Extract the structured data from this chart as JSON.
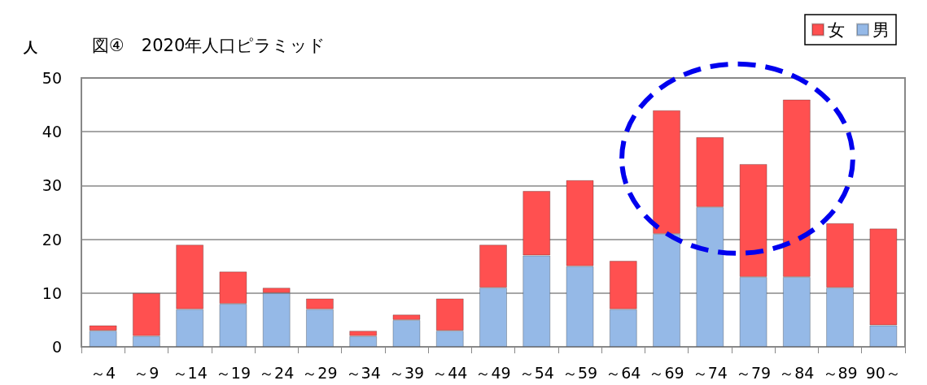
{
  "chart_data": {
    "type": "bar",
    "title": "図④　2020年人口ピラミッド",
    "ylabel": "人",
    "categories": [
      "～4",
      "～9",
      "～14",
      "～19",
      "～24",
      "～29",
      "～34",
      "～39",
      "～44",
      "～49",
      "～54",
      "～59",
      "～64",
      "～69",
      "～74",
      "～79",
      "～84",
      "～89",
      "90～"
    ],
    "series": [
      {
        "name": "男",
        "color": "#95b9e7",
        "values": [
          3,
          2,
          7,
          8,
          10,
          7,
          2,
          5,
          3,
          11,
          17,
          15,
          7,
          21,
          26,
          13,
          13,
          11,
          4
        ]
      },
      {
        "name": "女",
        "color": "#ff5050",
        "values": [
          1,
          8,
          12,
          6,
          1,
          2,
          1,
          1,
          6,
          8,
          12,
          16,
          9,
          23,
          13,
          21,
          33,
          12,
          18
        ]
      }
    ],
    "stacked": true,
    "ylim": [
      0,
      50
    ],
    "yticks": [
      0,
      10,
      20,
      30,
      40,
      50
    ],
    "grid": "y",
    "legend": "top right"
  }
}
